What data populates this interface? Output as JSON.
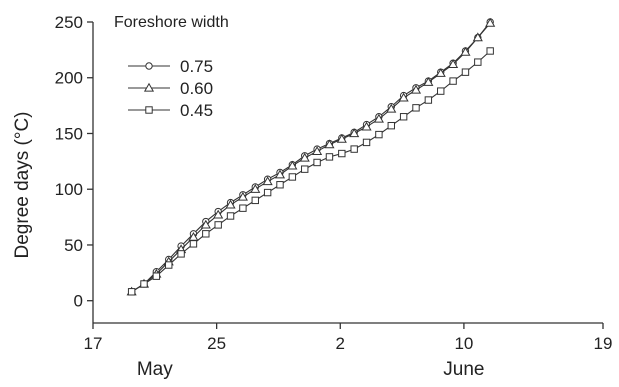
{
  "chart_data": {
    "type": "line",
    "title": "",
    "xlabel": "",
    "ylabel": "Degree days (°C)",
    "xlim": [
      17,
      50
    ],
    "ylim": [
      -20,
      250
    ],
    "x_ticks": [
      {
        "value": 17,
        "label": "17"
      },
      {
        "value": 25,
        "label": "25"
      },
      {
        "value": 33,
        "label": "2"
      },
      {
        "value": 41,
        "label": "10"
      },
      {
        "value": 50,
        "label": "19"
      }
    ],
    "y_ticks": [
      0,
      50,
      100,
      150,
      200,
      250
    ],
    "month_labels": [
      {
        "value": 21,
        "label": "May"
      },
      {
        "value": 41,
        "label": "June"
      }
    ],
    "grid": false,
    "legend": {
      "title": "Foreshore width",
      "position": "top-left"
    },
    "series": [
      {
        "name": "0.75",
        "marker": "circle",
        "x": [
          19.5,
          20.3,
          21.1,
          21.9,
          22.7,
          23.5,
          24.3,
          25.1,
          25.9,
          26.7,
          27.5,
          28.3,
          29.1,
          29.9,
          30.7,
          31.5,
          32.3,
          33.1,
          33.9,
          34.7,
          35.5,
          36.3,
          37.1,
          37.9,
          38.7,
          39.5,
          40.3,
          41.1,
          41.9,
          42.7,
          43.5,
          44.3,
          45.1,
          45.9,
          46.7,
          47.5,
          48.3
        ],
        "values": [
          8,
          15,
          26,
          37,
          49,
          60,
          71,
          80,
          88,
          95,
          102,
          109,
          115,
          122,
          130,
          136,
          141,
          146,
          151,
          158,
          165,
          174,
          184,
          191,
          197,
          205,
          213,
          224,
          236,
          250,
          null,
          null,
          null,
          null,
          null,
          null,
          null
        ]
      },
      {
        "name": "0.60",
        "marker": "triangle",
        "x": [
          19.5,
          20.3,
          21.1,
          21.9,
          22.7,
          23.5,
          24.3,
          25.1,
          25.9,
          26.7,
          27.5,
          28.3,
          29.1,
          29.9,
          30.7,
          31.5,
          32.3,
          33.1,
          33.9,
          34.7,
          35.5,
          36.3,
          37.1,
          37.9,
          38.7,
          39.5,
          40.3,
          41.1,
          41.9,
          42.7,
          43.5,
          44.3,
          45.1,
          45.9,
          46.7,
          47.5,
          48.3
        ],
        "values": [
          8,
          15,
          24,
          35,
          46,
          57,
          68,
          77,
          86,
          93,
          100,
          107,
          113,
          121,
          128,
          134,
          140,
          145,
          150,
          156,
          163,
          172,
          182,
          189,
          196,
          204,
          212,
          223,
          236,
          249,
          null,
          null,
          null,
          null,
          null,
          null,
          null
        ]
      },
      {
        "name": "0.45",
        "marker": "square",
        "x": [
          19.5,
          20.3,
          21.1,
          21.9,
          22.7,
          23.5,
          24.3,
          25.1,
          25.9,
          26.7,
          27.5,
          28.3,
          29.1,
          29.9,
          30.7,
          31.5,
          32.3,
          33.1,
          33.9,
          34.7,
          35.5,
          36.3,
          37.1,
          37.9,
          38.7,
          39.5,
          40.3,
          41.1,
          41.9,
          42.7,
          43.5,
          44.3,
          45.1,
          45.9,
          46.7,
          47.5,
          48.3
        ],
        "values": [
          8,
          15,
          22,
          32,
          42,
          51,
          60,
          68,
          76,
          83,
          90,
          97,
          104,
          111,
          118,
          124,
          129,
          132,
          136,
          142,
          149,
          157,
          165,
          173,
          180,
          188,
          197,
          205,
          214,
          224,
          null,
          null,
          null,
          null,
          null,
          null,
          null
        ]
      }
    ]
  }
}
